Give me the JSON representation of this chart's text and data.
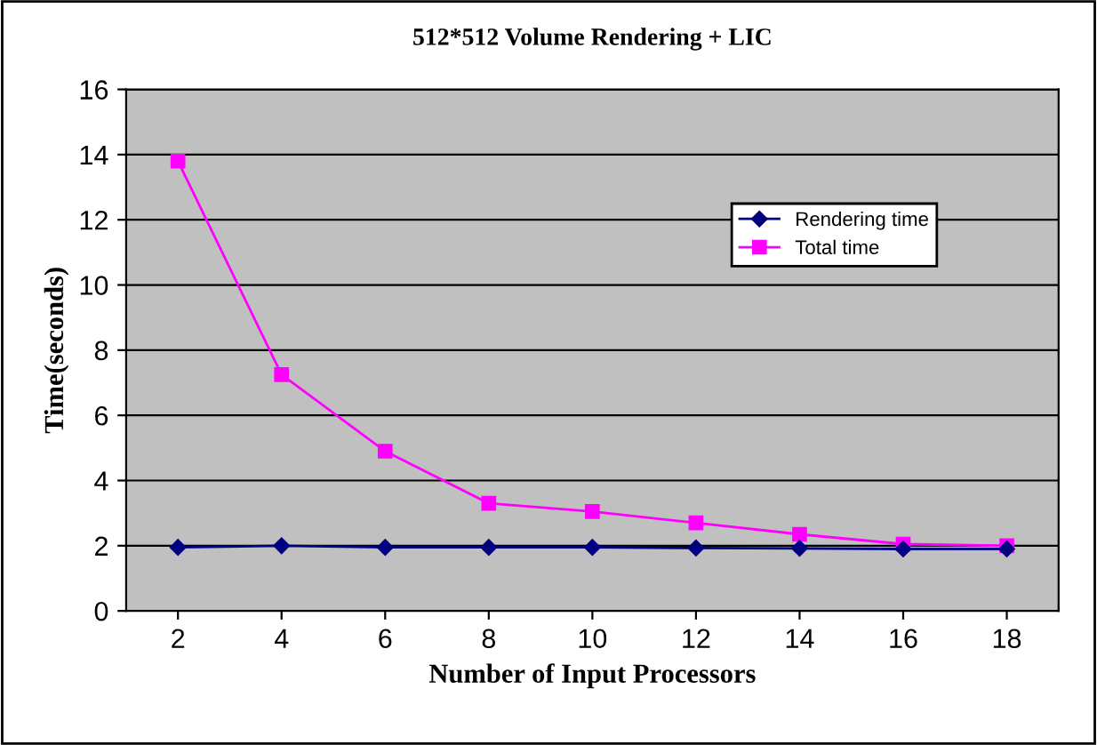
{
  "chart_data": {
    "type": "line",
    "title": "512*512 Volume Rendering + LIC",
    "xlabel": "Number of Input Processors",
    "ylabel": "Time(seconds)",
    "categories": [
      "2",
      "4",
      "6",
      "8",
      "10",
      "12",
      "14",
      "16",
      "18"
    ],
    "series": [
      {
        "name": "Rendering time",
        "color": "#000080",
        "marker": "diamond",
        "values": [
          1.95,
          2.0,
          1.95,
          1.95,
          1.95,
          1.93,
          1.92,
          1.9,
          1.9
        ]
      },
      {
        "name": "Total time",
        "color": "#ff00ff",
        "marker": "square",
        "values": [
          13.8,
          7.25,
          4.9,
          3.3,
          3.05,
          2.7,
          2.35,
          2.05,
          2.0
        ]
      }
    ],
    "ylim": [
      0,
      16
    ],
    "yticks": [
      0,
      2,
      4,
      6,
      8,
      10,
      12,
      14,
      16
    ],
    "grid": "y",
    "legend": "top right"
  }
}
